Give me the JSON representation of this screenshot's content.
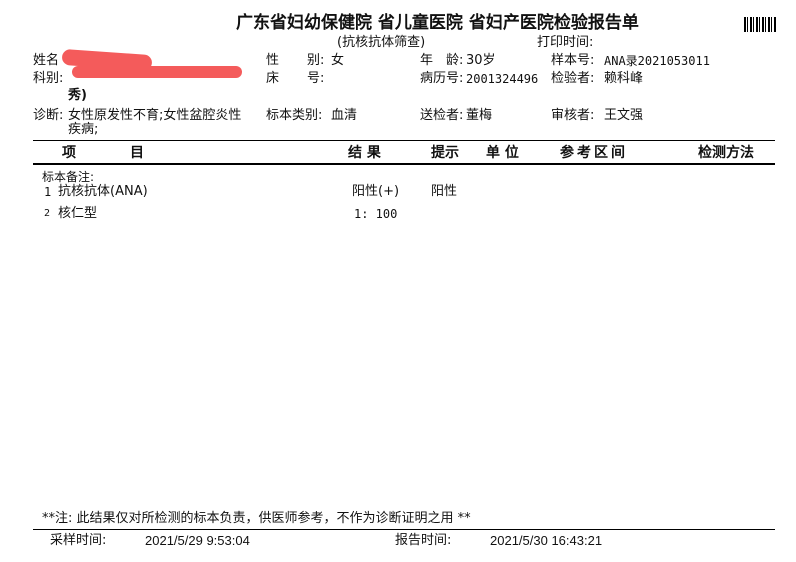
{
  "header": {
    "title": "广东省妇幼保健院 省儿童医院 省妇产医院检验报告单",
    "subtitle": "(抗核抗体筛查)",
    "print_time_label": "打印时间:"
  },
  "patient": {
    "name_label": "姓名",
    "sex_label_1": "性",
    "sex_label_2": "别:",
    "sex": "女",
    "age_label": "年　龄:",
    "age": "30岁",
    "sample_no_label": "样本号:",
    "sample_no": "ANA录2021053011",
    "dept_label": "科别:",
    "dept_tail": "秀)",
    "bed_label_1": "床",
    "bed_label_2": "号:",
    "record_no_label": "病历号:",
    "record_no": "2001324496",
    "tester_label": "检验者:",
    "tester": "赖科峰",
    "diagnosis_label": "诊断:",
    "diagnosis_line1": "女性原发性不育;女性盆腔炎性",
    "diagnosis_line2": "疾病;",
    "specimen_type_label": "标本类别:",
    "specimen_type": "血清",
    "sender_label": "送检者:",
    "sender": "董梅",
    "reviewer_label": "审核者:",
    "reviewer": "王文强"
  },
  "table": {
    "columns": {
      "item_1": "项",
      "item_2": "目",
      "result": "结 果",
      "hint": "提示",
      "unit": "单 位",
      "reference": "参考区间",
      "method": "检测方法"
    },
    "note_label": "标本备注:",
    "rows": [
      {
        "no": "1",
        "item": "抗核抗体(ANA)",
        "result": "阳性(+)",
        "hint": "阳性"
      },
      {
        "no": "2",
        "item": "核仁型",
        "result": "1: 100",
        "hint": ""
      }
    ]
  },
  "footer": {
    "note": "**注: 此结果仅对所检测的标本负责，供医师参考，不作为诊断证明之用 **",
    "sample_time_label": "采样时间:",
    "sample_time": "2021/5/29 9:53:04",
    "report_time_label": "报告时间:",
    "report_time": "2021/5/30 16:43:21"
  }
}
